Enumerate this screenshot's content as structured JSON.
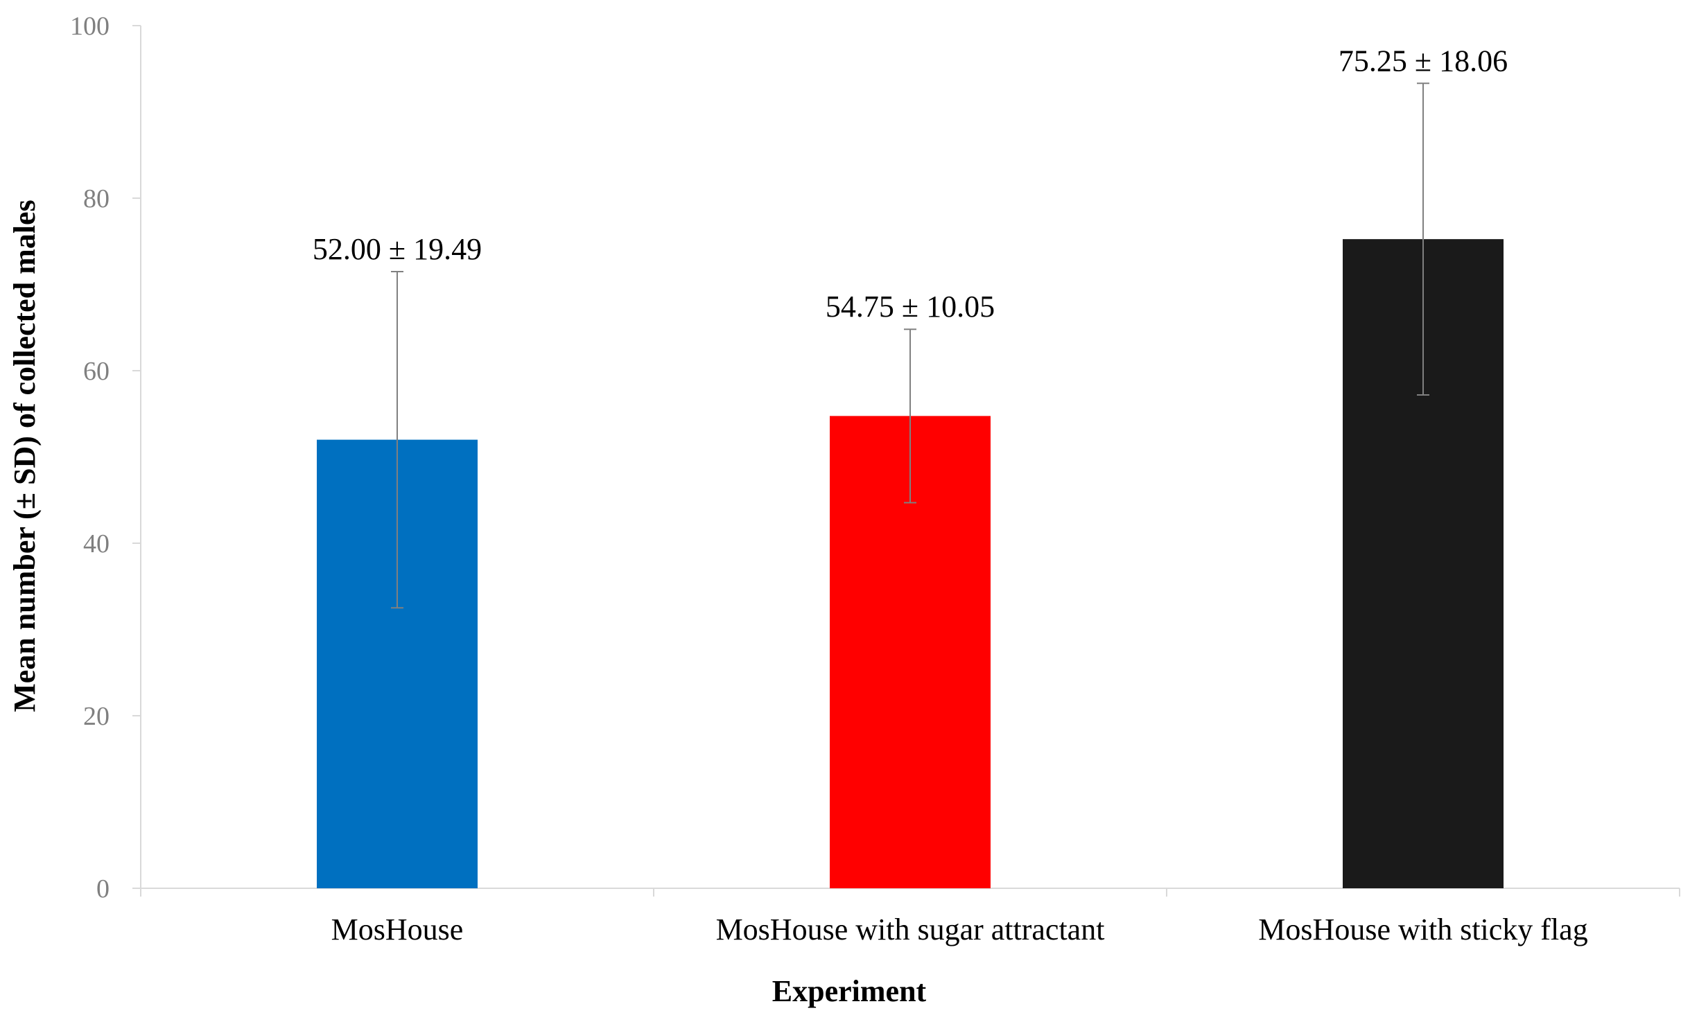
{
  "chart_data": {
    "type": "bar",
    "title": "",
    "xlabel": "Experiment",
    "ylabel": "Mean number (± SD) of collected males",
    "ylim": [
      0,
      100
    ],
    "yticks": [
      0,
      20,
      40,
      60,
      80,
      100
    ],
    "ytick_labels": [
      "0",
      "20",
      "40",
      "60",
      "80",
      "100"
    ],
    "categories": [
      "MosHouse",
      "MosHouse with sugar attractant",
      "MosHouse with sticky flag"
    ],
    "values": [
      52.0,
      54.75,
      75.25
    ],
    "errors": [
      19.49,
      10.05,
      18.06
    ],
    "data_labels": [
      "52.00 ± 19.49",
      "54.75 ± 10.05",
      "75.25 ± 18.06"
    ],
    "colors": [
      "#0070c0",
      "#ff0000",
      "#1a1a1a"
    ],
    "grid": false,
    "legend": "none"
  }
}
